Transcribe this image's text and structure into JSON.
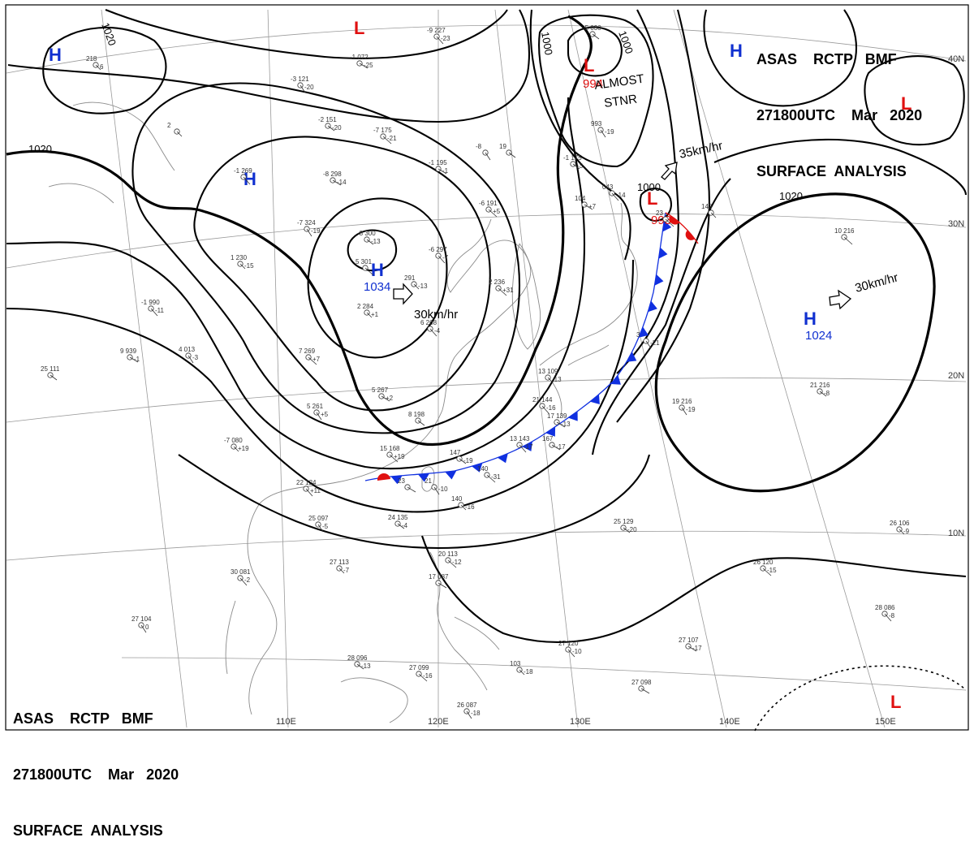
{
  "titles": {
    "top_right": {
      "line1": "ASAS    RCTP   BMF",
      "line2": "271800UTC    Mar   2020",
      "line3": "SURFACE  ANALYSIS"
    },
    "bottom_left": {
      "line1": "ASAS    RCTP   BMF",
      "line2": "271800UTC    Mar   2020",
      "line3": "SURFACE  ANALYSIS"
    }
  },
  "colors": {
    "high": "#1030d0",
    "low": "#e01010",
    "cold_front": "#1030e0",
    "warm_front": "#e01010",
    "isobar": "#000000",
    "coast": "#8a8a8a"
  },
  "latitude_labels": [
    "40N",
    "30N",
    "20N",
    "10N"
  ],
  "longitude_labels": [
    "110E",
    "120E",
    "130E",
    "140E",
    "150E"
  ],
  "isobar_labels": [
    "1020",
    "1020",
    "1020",
    "1000",
    "1000",
    "1000",
    "1020"
  ],
  "pressure_centers": [
    {
      "type": "high",
      "letter": "H",
      "value": ""
    },
    {
      "type": "high",
      "letter": "H",
      "value": ""
    },
    {
      "type": "high",
      "letter": "H",
      "value": "1034"
    },
    {
      "type": "high",
      "letter": "H",
      "value": ""
    },
    {
      "type": "high",
      "letter": "H",
      "value": "1024"
    },
    {
      "type": "low",
      "letter": "L",
      "value": ""
    },
    {
      "type": "low",
      "letter": "L",
      "value": "994"
    },
    {
      "type": "low",
      "letter": "L",
      "value": "998"
    },
    {
      "type": "low",
      "letter": "L",
      "value": ""
    },
    {
      "type": "low",
      "letter": "L",
      "value": ""
    }
  ],
  "movements": [
    "30km/hr",
    "35km/hr",
    "30km/hr"
  ],
  "annotations": {
    "almost_line1": "ALMOST",
    "almost_line2": "STNR"
  },
  "stations": [
    {
      "t": "218",
      "w": "6"
    },
    {
      "t": "-9 227",
      "w": "-23"
    },
    {
      "t": "-1 072",
      "w": "-25"
    },
    {
      "t": "-3 121",
      "w": "-20"
    },
    {
      "t": "-2 151",
      "w": "-20"
    },
    {
      "t": "-7 175",
      "w": "-21"
    },
    {
      "t": "2",
      "w": ""
    },
    {
      "t": "-1 269",
      "w": ""
    },
    {
      "t": "-8 298",
      "w": "-14"
    },
    {
      "t": "-7 324",
      "w": "-19"
    },
    {
      "t": "-8 300",
      "w": "-13"
    },
    {
      "t": "5 301",
      "w": ""
    },
    {
      "t": "291",
      "w": "-13"
    },
    {
      "t": "-6 297",
      "w": "-7"
    },
    {
      "t": "-1 195",
      "w": "-1"
    },
    {
      "t": "-8",
      "w": ""
    },
    {
      "t": "19",
      "w": ""
    },
    {
      "t": "-6 191",
      "w": "+5"
    },
    {
      "t": "1 230",
      "w": "-15"
    },
    {
      "t": "-1 990",
      "w": "-11"
    },
    {
      "t": "9 939",
      "w": "-1"
    },
    {
      "t": "4 013",
      "w": "-3"
    },
    {
      "t": "25 111",
      "w": ""
    },
    {
      "t": "7 269",
      "w": "+7"
    },
    {
      "t": "2 284",
      "w": "+1"
    },
    {
      "t": "6 268",
      "w": "-4"
    },
    {
      "t": "5 267",
      "w": "+2"
    },
    {
      "t": "5 261",
      "w": "+5"
    },
    {
      "t": "8 198",
      "w": ""
    },
    {
      "t": "15 168",
      "w": "+19"
    },
    {
      "t": "-7 080",
      "w": "+19"
    },
    {
      "t": "22 124",
      "w": "+11"
    },
    {
      "t": "23",
      "w": ""
    },
    {
      "t": "21",
      "w": "-10"
    },
    {
      "t": "147",
      "w": "-19"
    },
    {
      "t": "140",
      "w": "-31"
    },
    {
      "t": "140",
      "w": "-16"
    },
    {
      "t": "13 143",
      "w": "-17"
    },
    {
      "t": "167",
      "w": "-17"
    },
    {
      "t": "25 097",
      "w": "-5"
    },
    {
      "t": "24 135",
      "w": "-4"
    },
    {
      "t": "20 113",
      "w": "-12"
    },
    {
      "t": "27 113",
      "w": "-7"
    },
    {
      "t": "30 081",
      "w": "-2"
    },
    {
      "t": "17 087",
      "w": ""
    },
    {
      "t": "27 104",
      "w": "0"
    },
    {
      "t": "28 096",
      "w": "-13"
    },
    {
      "t": "27 099",
      "w": "-16"
    },
    {
      "t": "103",
      "w": "-18"
    },
    {
      "t": "27 120",
      "w": "-10"
    },
    {
      "t": "27 098",
      "w": ""
    },
    {
      "t": "26 087",
      "w": "-18"
    },
    {
      "t": "25 129",
      "w": "-20"
    },
    {
      "t": "26 120",
      "w": "-15"
    },
    {
      "t": "26 106",
      "w": "-9"
    },
    {
      "t": "28 086",
      "w": "-8"
    },
    {
      "t": "27 107",
      "w": "-17"
    },
    {
      "t": "19 216",
      "w": "-19"
    },
    {
      "t": "21 216",
      "w": "-8"
    },
    {
      "t": "10 216",
      "w": ""
    },
    {
      "t": "143",
      "w": ""
    },
    {
      "t": "043",
      "w": "-14"
    },
    {
      "t": "104",
      "w": "+7"
    },
    {
      "t": "993",
      "w": "-19"
    },
    {
      "t": "-5 030",
      "w": ""
    },
    {
      "t": "2 236",
      "w": "+31"
    },
    {
      "t": "13 109",
      "w": "-13"
    },
    {
      "t": "21 144",
      "w": "-16"
    },
    {
      "t": "17 139",
      "w": "-13"
    },
    {
      "t": "3",
      "w": "-21"
    },
    {
      "t": "-1 175",
      "w": "-3"
    },
    {
      "t": "23",
      "w": ""
    }
  ]
}
